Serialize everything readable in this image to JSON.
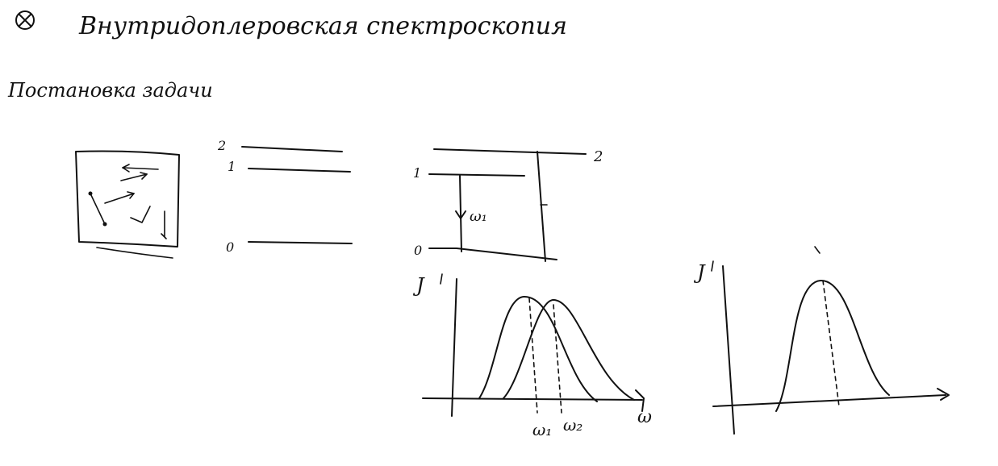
{
  "title": "Внутридоплеровская спектроскопия",
  "section": "Постановка задачи",
  "levels_left": {
    "level_2": "2",
    "level_1": "1",
    "level_0": "0"
  },
  "levels_mid": {
    "level_1": "1",
    "level_0": "0",
    "level_2": "2",
    "transition": "ω₁"
  },
  "graph_left": {
    "ylabel": "J",
    "xlabel": "ω",
    "tick_1": "ω₁",
    "tick_2": "ω₂"
  },
  "graph_right": {
    "ylabel": "J"
  }
}
